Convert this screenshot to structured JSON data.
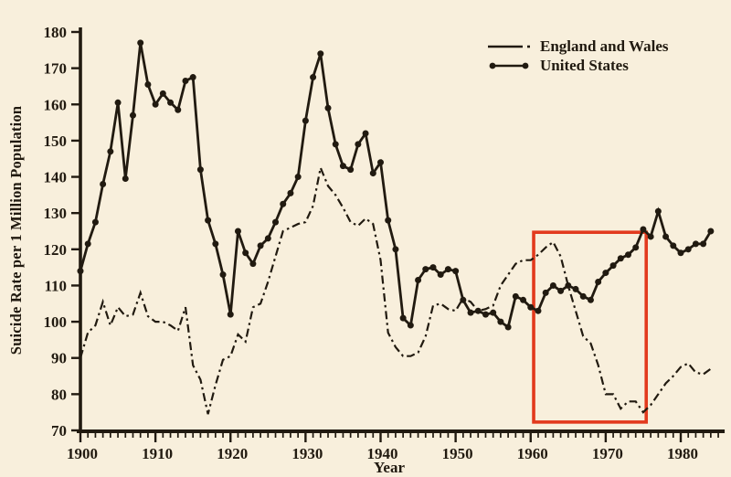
{
  "figure": {
    "background_color": "#f8efdc",
    "ink_color": "#211a10",
    "highlight_color": "#e23a1d"
  },
  "chart_data": {
    "type": "line",
    "xlabel": "Year",
    "ylabel": "Suicide Rate per 1 Million Population",
    "xlim": [
      1900,
      1985
    ],
    "ylim": [
      70,
      180
    ],
    "grid": false,
    "legend_position": "top-right",
    "x_ticks_major": [
      1900,
      1910,
      1920,
      1930,
      1940,
      1950,
      1960,
      1970,
      1980
    ],
    "x_minor_tick_step": 1,
    "y_ticks": [
      70,
      80,
      90,
      100,
      110,
      120,
      130,
      140,
      150,
      160,
      170,
      180
    ],
    "years": [
      1900,
      1901,
      1902,
      1903,
      1904,
      1905,
      1906,
      1907,
      1908,
      1909,
      1910,
      1911,
      1912,
      1913,
      1914,
      1915,
      1916,
      1917,
      1918,
      1919,
      1920,
      1921,
      1922,
      1923,
      1924,
      1925,
      1926,
      1927,
      1928,
      1929,
      1930,
      1931,
      1932,
      1933,
      1934,
      1935,
      1936,
      1937,
      1938,
      1939,
      1940,
      1941,
      1942,
      1943,
      1944,
      1945,
      1946,
      1947,
      1948,
      1949,
      1950,
      1951,
      1952,
      1953,
      1954,
      1955,
      1956,
      1957,
      1958,
      1959,
      1960,
      1961,
      1962,
      1963,
      1964,
      1965,
      1966,
      1967,
      1968,
      1969,
      1970,
      1971,
      1972,
      1973,
      1974,
      1975,
      1976,
      1977,
      1978,
      1979,
      1980,
      1981,
      1982,
      1983,
      1984
    ],
    "series": [
      {
        "name": "England and Wales",
        "line_style": "dash-dot",
        "marker": "none",
        "values": [
          90,
          97,
          99,
          105.5,
          99,
          104,
          101.5,
          102,
          108,
          101.5,
          100,
          100,
          99,
          97.5,
          104,
          88,
          84,
          74.5,
          82.5,
          89.5,
          90.5,
          96.5,
          94.5,
          104,
          105,
          111,
          118,
          125,
          126,
          127,
          127.5,
          132,
          142.5,
          137.5,
          135,
          131.5,
          127.5,
          126.5,
          128.5,
          127,
          117,
          97,
          93,
          90.5,
          90.5,
          91.5,
          96,
          104.5,
          105,
          103.5,
          103,
          106.5,
          105.5,
          103,
          103.5,
          104.5,
          110,
          113,
          116,
          117,
          117,
          118.5,
          120.5,
          122,
          118,
          110,
          103,
          96,
          94,
          88,
          80,
          80,
          76,
          78,
          78,
          75,
          77,
          80,
          83,
          85,
          87.5,
          88.5,
          86,
          85.5,
          87
        ]
      },
      {
        "name": "United States",
        "line_style": "solid",
        "marker": "filled-circle",
        "values": [
          114,
          121.5,
          127.5,
          138,
          147,
          160.5,
          139.5,
          157,
          177,
          165.5,
          160,
          163,
          160.5,
          158.5,
          166.5,
          167.5,
          142,
          128,
          121.5,
          113,
          102,
          125,
          119,
          116,
          121,
          123,
          127.5,
          132.5,
          135.5,
          140,
          155.5,
          167.5,
          174,
          159,
          149,
          143,
          142,
          149,
          152,
          141,
          144,
          128,
          120,
          101,
          99,
          111.5,
          114.5,
          115,
          113,
          114.5,
          114,
          106,
          102.5,
          103,
          102,
          102.5,
          100,
          98.5,
          107,
          106,
          104,
          103,
          108,
          110,
          108.5,
          110,
          109,
          107,
          106,
          111,
          113.5,
          115.5,
          117.5,
          118.5,
          120.5,
          125.5,
          123.5,
          130.5,
          123.5,
          121,
          119,
          120,
          121.5,
          121.5,
          125
        ]
      }
    ],
    "annotation_box": {
      "description": "red rectangle highlighting divergence of the two curves circa 1961-1975",
      "year_start": 1960.4,
      "year_end": 1975.4,
      "value_bottom": 72.3,
      "value_top": 124.7,
      "color": "#e23a1d"
    }
  }
}
